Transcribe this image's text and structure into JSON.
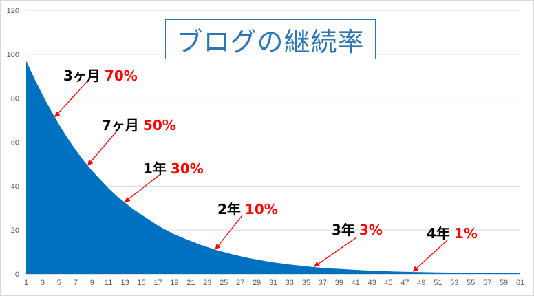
{
  "chart_data": {
    "type": "area",
    "title": "ブログの継続率",
    "xlabel": "",
    "ylabel": "",
    "ylim": [
      0,
      120
    ],
    "y_ticks": [
      0,
      20,
      40,
      60,
      80,
      100,
      120
    ],
    "xlim": [
      1,
      61
    ],
    "x_ticks": [
      1,
      3,
      5,
      7,
      9,
      11,
      13,
      15,
      17,
      19,
      21,
      23,
      25,
      27,
      29,
      31,
      33,
      35,
      37,
      39,
      41,
      43,
      45,
      47,
      49,
      51,
      53,
      55,
      57,
      59,
      61
    ],
    "grid": "horizontal",
    "legend": "none",
    "series": [
      {
        "x": [
          1,
          2,
          3,
          4,
          5,
          6,
          7,
          8,
          9,
          10,
          11,
          12,
          13,
          14,
          15,
          16,
          17,
          18,
          19,
          20,
          21,
          22,
          23,
          24,
          25,
          26,
          27,
          28,
          29,
          30,
          31,
          32,
          33,
          34,
          35,
          36,
          37,
          38,
          39,
          40,
          41,
          42,
          43,
          44,
          45,
          46,
          47,
          48,
          49,
          50,
          51,
          52,
          53,
          54,
          55,
          56,
          57,
          58,
          59,
          60,
          61
        ],
        "values": [
          97,
          89,
          81.5,
          74.5,
          68,
          62,
          56.5,
          51.5,
          47,
          43,
          39,
          35.5,
          32.5,
          29.5,
          27,
          24.5,
          22,
          20,
          18,
          16.5,
          15,
          13.5,
          12.3,
          11,
          10,
          9,
          8.1,
          7.3,
          6.6,
          5.9,
          5.3,
          4.8,
          4.3,
          3.9,
          3.5,
          3.1,
          2.8,
          2.5,
          2.3,
          2.1,
          1.9,
          1.7,
          1.5,
          1.4,
          1.2,
          1.1,
          1.0,
          0.9,
          0.85,
          0.8,
          0.7,
          0.65,
          0.6,
          0.55,
          0.5,
          0.45,
          0.4,
          0.35,
          0.3,
          0.3,
          0.3
        ],
        "color": "#0070c0"
      }
    ],
    "annotations": [
      {
        "label": "3ヶ月",
        "value": "70%",
        "x": 4.5
      },
      {
        "label": "7ヶ月",
        "value": "50%",
        "x": 8.5
      },
      {
        "label": "1年",
        "value": "30%",
        "x": 13
      },
      {
        "label": "2年",
        "value": "10%",
        "x": 24
      },
      {
        "label": "3年",
        "value": "3%",
        "x": 36
      },
      {
        "label": "4年",
        "value": "1%",
        "x": 48
      }
    ],
    "annotation_color": "#ff0000"
  }
}
